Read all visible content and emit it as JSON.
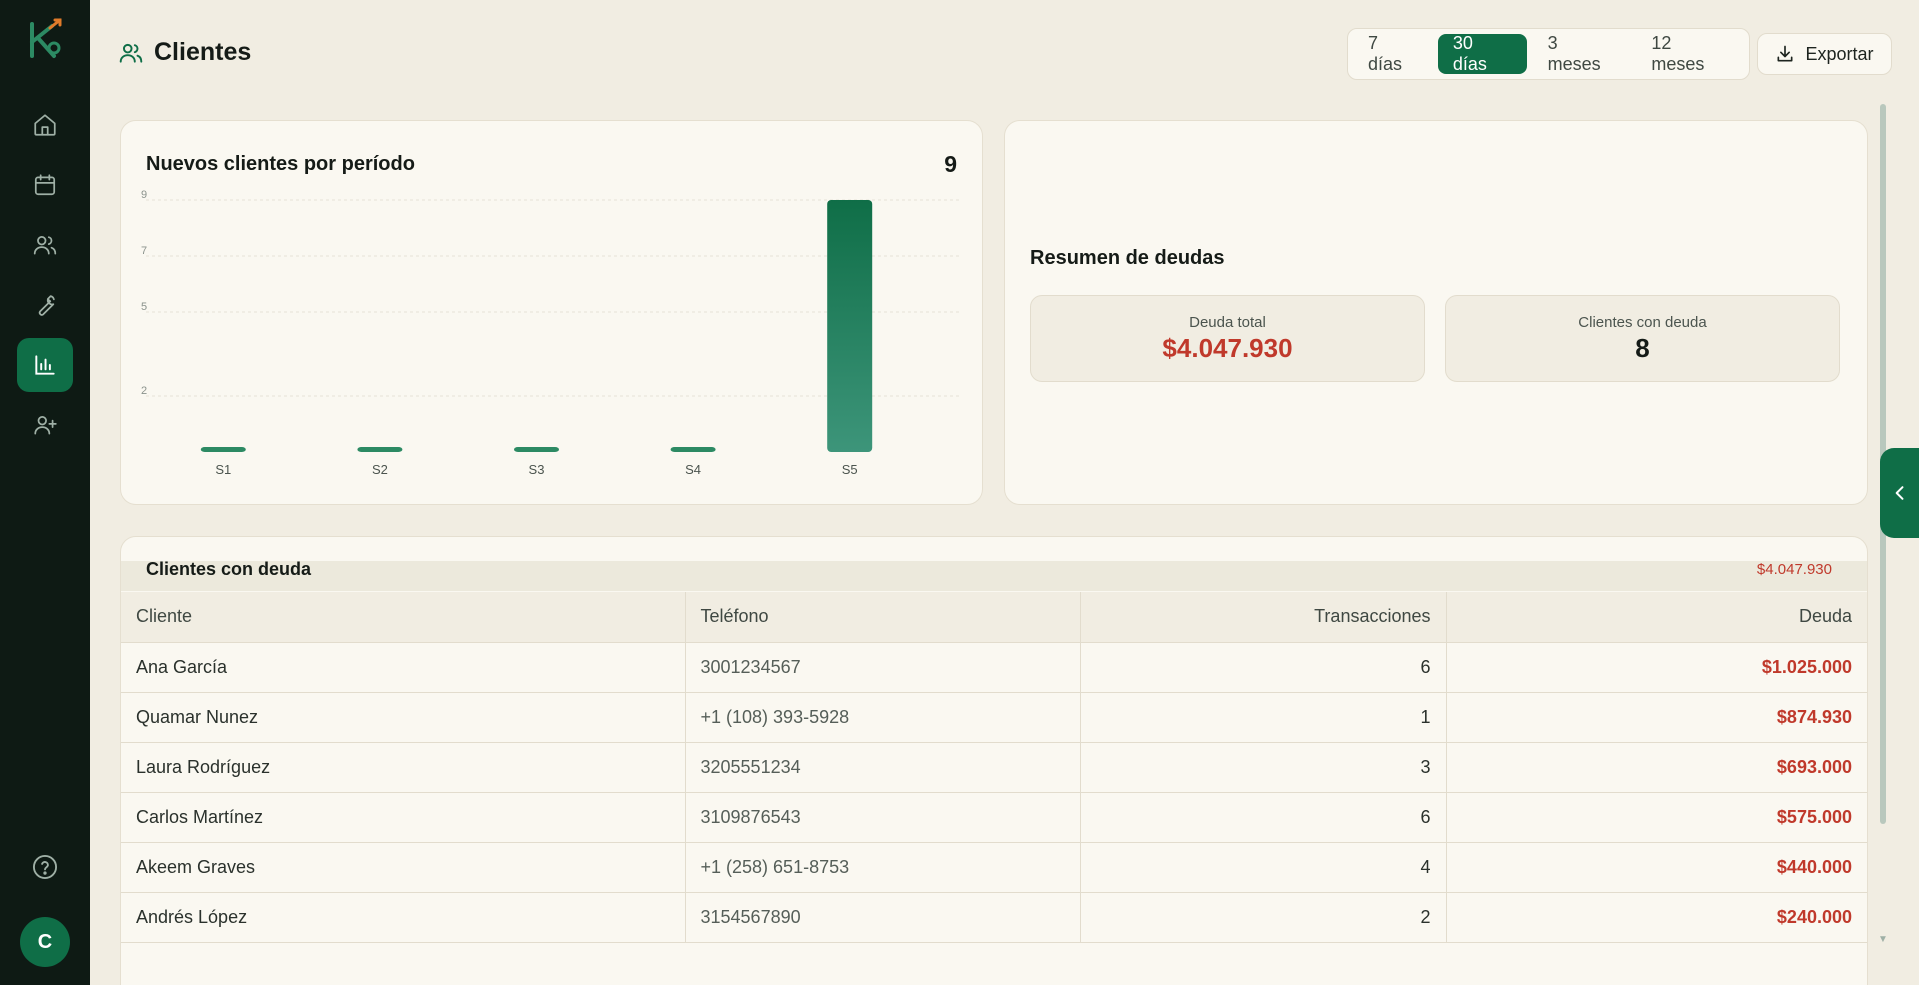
{
  "header": {
    "title": "Clientes",
    "ranges": [
      "7 días",
      "30 días",
      "3 meses",
      "12 meses"
    ],
    "active_range": "30 días",
    "export_label": "Exportar"
  },
  "sidebar": {
    "items": [
      {
        "icon": "home-icon"
      },
      {
        "icon": "calendar-icon"
      },
      {
        "icon": "users-icon"
      },
      {
        "icon": "wrench-icon"
      },
      {
        "icon": "bar-chart-icon",
        "active": true
      },
      {
        "icon": "user-plus-icon"
      }
    ],
    "avatar_initial": "C"
  },
  "new_clients": {
    "title": "Nuevos clientes por período",
    "total": "9"
  },
  "chart_data": {
    "type": "bar",
    "title": "Nuevos clientes por período",
    "categories": [
      "S1",
      "S2",
      "S3",
      "S4",
      "S5"
    ],
    "values": [
      0,
      0,
      0,
      0,
      9
    ],
    "y_ticks": [
      "9",
      "7",
      "5",
      "2"
    ],
    "ylim": [
      0,
      9
    ],
    "grid": true,
    "bar_color": "#0f6e47"
  },
  "debt_summary": {
    "title": "Resumen de deudas",
    "total_label": "Deuda total",
    "total_value": "$4.047.930",
    "clients_label": "Clientes con deuda",
    "clients_value": "8"
  },
  "debt_table": {
    "title": "Clientes con deuda",
    "sum": "$4.047.930",
    "columns": [
      "Cliente",
      "Teléfono",
      "Transacciones",
      "Deuda"
    ],
    "rows": [
      [
        "Ana García",
        "3001234567",
        "6",
        "$1.025.000"
      ],
      [
        "Quamar Nunez",
        "+1 (108) 393-5928",
        "1",
        "$874.930"
      ],
      [
        "Laura Rodríguez",
        "3205551234",
        "3",
        "$693.000"
      ],
      [
        "Carlos Martínez",
        "3109876543",
        "6",
        "$575.000"
      ],
      [
        "Akeem Graves",
        "+1 (258) 651-8753",
        "4",
        "$440.000"
      ],
      [
        "Andrés López",
        "3154567890",
        "2",
        "$240.000"
      ]
    ]
  },
  "colors": {
    "accent": "#0f6e47",
    "debt_red": "#c0392b",
    "sidebar_bg": "#0e1a14",
    "page_bg": "#f1ede2"
  }
}
